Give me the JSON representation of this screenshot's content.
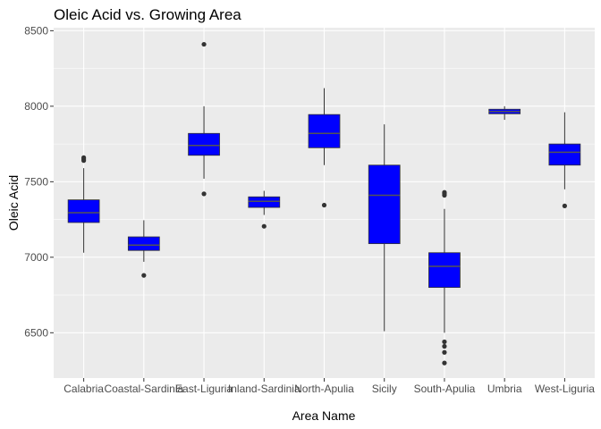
{
  "chart_data": {
    "type": "boxplot",
    "title": "Oleic Acid vs. Growing Area",
    "xlabel": "Area Name",
    "ylabel": "Oleic Acid",
    "ylim": [
      6200,
      8520
    ],
    "y_ticks": [
      6500,
      7000,
      7500,
      8000,
      8500
    ],
    "y_tick_labels": [
      "6500",
      "7000",
      "7500",
      "8000",
      "8500"
    ],
    "grid": true,
    "background": "#ebebeb",
    "grid_color": "#ffffff",
    "box_fill": "#0000ff",
    "box_stroke": "#333333",
    "median_color": "#555555",
    "categories": [
      "Calabria",
      "Coastal-Sardinia",
      "East-Liguria",
      "Inland-Sardinia",
      "North-Apulia",
      "Sicily",
      "South-Apulia",
      "Umbria",
      "West-Liguria"
    ],
    "boxes": [
      {
        "category": "Calabria",
        "min": 7030,
        "q1": 7230,
        "median": 7295,
        "q3": 7380,
        "max": 7590,
        "outliers": [
          7640,
          7650,
          7660
        ]
      },
      {
        "category": "Coastal-Sardinia",
        "min": 6970,
        "q1": 7045,
        "median": 7080,
        "q3": 7135,
        "max": 7245,
        "outliers": [
          6880
        ]
      },
      {
        "category": "East-Liguria",
        "min": 7520,
        "q1": 7675,
        "median": 7740,
        "q3": 7820,
        "max": 8000,
        "outliers": [
          7420,
          8410
        ]
      },
      {
        "category": "Inland-Sardinia",
        "min": 7280,
        "q1": 7330,
        "median": 7370,
        "q3": 7400,
        "max": 7440,
        "outliers": [
          7205
        ]
      },
      {
        "category": "North-Apulia",
        "min": 7610,
        "q1": 7725,
        "median": 7820,
        "q3": 7945,
        "max": 8120,
        "outliers": [
          7345
        ]
      },
      {
        "category": "Sicily",
        "min": 6510,
        "q1": 7090,
        "median": 7410,
        "q3": 7610,
        "max": 7880,
        "outliers": []
      },
      {
        "category": "South-Apulia",
        "min": 6500,
        "q1": 6800,
        "median": 6940,
        "q3": 7030,
        "max": 7320,
        "outliers": [
          6300,
          6370,
          6410,
          6440,
          7410,
          7420,
          7430
        ]
      },
      {
        "category": "Umbria",
        "min": 7910,
        "q1": 7950,
        "median": 7965,
        "q3": 7980,
        "max": 8000,
        "outliers": []
      },
      {
        "category": "West-Liguria",
        "min": 7450,
        "q1": 7610,
        "median": 7695,
        "q3": 7750,
        "max": 7960,
        "outliers": [
          7340
        ]
      }
    ]
  }
}
